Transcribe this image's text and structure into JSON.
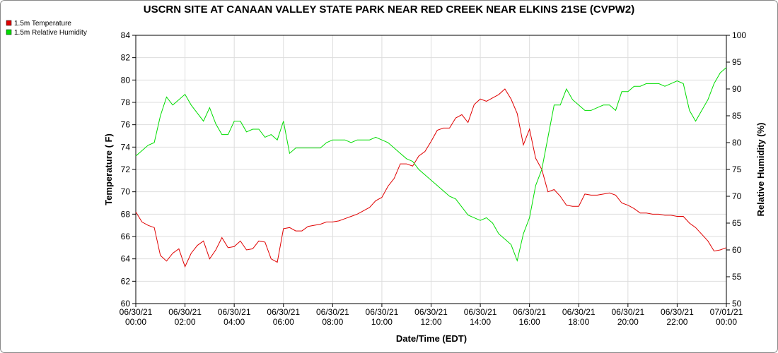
{
  "chart_data": {
    "type": "line",
    "title": "USCRN SITE AT CANAAN VALLEY STATE PARK NEAR RED CREEK NEAR ELKINS 21SE (CVPW2)",
    "x_label": "Date/Time (EDT)",
    "y_label": "Temperature ( F)",
    "y2_label": "Relative Humidity (%)",
    "x": [
      "06/30/21 00:00",
      "06/30/21 00:15",
      "06/30/21 00:30",
      "06/30/21 00:45",
      "06/30/21 01:00",
      "06/30/21 01:15",
      "06/30/21 01:30",
      "06/30/21 01:45",
      "06/30/21 02:00",
      "06/30/21 02:15",
      "06/30/21 02:30",
      "06/30/21 02:45",
      "06/30/21 03:00",
      "06/30/21 03:15",
      "06/30/21 03:30",
      "06/30/21 03:45",
      "06/30/21 04:00",
      "06/30/21 04:15",
      "06/30/21 04:30",
      "06/30/21 04:45",
      "06/30/21 05:00",
      "06/30/21 05:15",
      "06/30/21 05:30",
      "06/30/21 05:45",
      "06/30/21 06:00",
      "06/30/21 06:15",
      "06/30/21 06:30",
      "06/30/21 06:45",
      "06/30/21 07:00",
      "06/30/21 07:15",
      "06/30/21 07:30",
      "06/30/21 07:45",
      "06/30/21 08:00",
      "06/30/21 08:15",
      "06/30/21 08:30",
      "06/30/21 08:45",
      "06/30/21 09:00",
      "06/30/21 09:15",
      "06/30/21 09:30",
      "06/30/21 09:45",
      "06/30/21 10:00",
      "06/30/21 10:15",
      "06/30/21 10:30",
      "06/30/21 10:45",
      "06/30/21 11:00",
      "06/30/21 11:15",
      "06/30/21 11:30",
      "06/30/21 11:45",
      "06/30/21 12:00",
      "06/30/21 12:15",
      "06/30/21 12:30",
      "06/30/21 12:45",
      "06/30/21 13:00",
      "06/30/21 13:15",
      "06/30/21 13:30",
      "06/30/21 13:45",
      "06/30/21 14:00",
      "06/30/21 14:15",
      "06/30/21 14:30",
      "06/30/21 14:45",
      "06/30/21 15:00",
      "06/30/21 15:15",
      "06/30/21 15:30",
      "06/30/21 15:45",
      "06/30/21 16:00",
      "06/30/21 16:15",
      "06/30/21 16:30",
      "06/30/21 16:45",
      "06/30/21 17:00",
      "06/30/21 17:15",
      "06/30/21 17:30",
      "06/30/21 17:45",
      "06/30/21 18:00",
      "06/30/21 18:15",
      "06/30/21 18:30",
      "06/30/21 18:45",
      "06/30/21 19:00",
      "06/30/21 19:15",
      "06/30/21 19:30",
      "06/30/21 19:45",
      "06/30/21 20:00",
      "06/30/21 20:15",
      "06/30/21 20:30",
      "06/30/21 20:45",
      "06/30/21 21:00",
      "06/30/21 21:15",
      "06/30/21 21:30",
      "06/30/21 21:45",
      "06/30/21 22:00",
      "06/30/21 22:15",
      "06/30/21 22:30",
      "06/30/21 22:45",
      "06/30/21 23:00",
      "06/30/21 23:15",
      "06/30/21 23:30",
      "06/30/21 23:45",
      "07/01/21 00:00"
    ],
    "series": [
      {
        "name": "1.5m Temperature",
        "color": "#e00000",
        "values": [
          68.2,
          67.3,
          67.0,
          66.8,
          64.3,
          63.8,
          64.5,
          64.9,
          63.3,
          64.5,
          65.2,
          65.6,
          64.0,
          64.8,
          65.9,
          65.0,
          65.1,
          65.6,
          64.8,
          64.9,
          65.6,
          65.5,
          64.0,
          63.7,
          66.7,
          66.8,
          66.5,
          66.5,
          66.9,
          67.0,
          67.1,
          67.3,
          67.3,
          67.4,
          67.6,
          67.8,
          68.0,
          68.3,
          68.6,
          69.2,
          69.5,
          70.5,
          71.2,
          72.5,
          72.5,
          72.3,
          73.2,
          73.6,
          74.5,
          75.5,
          75.7,
          75.7,
          76.6,
          76.9,
          76.2,
          77.8,
          78.3,
          78.1,
          78.4,
          78.7,
          79.2,
          78.3,
          77.0,
          74.2,
          75.6,
          73.0,
          72.0,
          70.0,
          70.2,
          69.6,
          68.8,
          68.7,
          68.7,
          69.8,
          69.7,
          69.7,
          69.8,
          69.9,
          69.7,
          69.0,
          68.8,
          68.5,
          68.1,
          68.1,
          68.0,
          68.0,
          67.9,
          67.9,
          67.8,
          67.8,
          67.2,
          66.8,
          66.2,
          65.6,
          64.7,
          64.8,
          65.0
        ]
      },
      {
        "name": "1.5m Relative Humidity",
        "color": "#00dd00",
        "axis": "y2",
        "values": [
          77.5,
          78.5,
          79.5,
          80,
          85,
          88.5,
          87,
          88,
          89,
          87,
          85.5,
          84,
          86.5,
          83.5,
          81.5,
          81.5,
          84,
          84,
          82,
          82.5,
          82.5,
          81,
          81.5,
          80.5,
          84,
          78,
          79,
          79,
          79,
          79,
          79,
          80,
          80.5,
          80.5,
          80.5,
          80,
          80.5,
          80.5,
          80.5,
          81,
          80.5,
          80,
          79,
          78,
          77,
          76.5,
          75,
          74,
          73,
          72,
          71,
          70,
          69.5,
          68,
          66.5,
          66,
          65.5,
          66,
          65,
          63,
          62,
          61,
          58,
          63,
          66,
          72,
          75,
          81,
          87,
          87,
          90,
          88,
          87,
          86,
          86,
          86.5,
          87,
          87,
          86,
          89.5,
          89.5,
          90.5,
          90.5,
          91,
          91,
          91,
          90.5,
          91,
          91.5,
          91,
          86,
          84,
          86,
          88,
          91,
          93,
          94
        ]
      }
    ],
    "xlim": [
      "06/30/21 00:00",
      "07/01/21 00:00"
    ],
    "xticks": [
      "06/30/21 00:00",
      "06/30/21 02:00",
      "06/30/21 04:00",
      "06/30/21 06:00",
      "06/30/21 08:00",
      "06/30/21 10:00",
      "06/30/21 12:00",
      "06/30/21 14:00",
      "06/30/21 16:00",
      "06/30/21 18:00",
      "06/30/21 20:00",
      "06/30/21 22:00",
      "07/01/21 00:00"
    ],
    "ylim": [
      60,
      84
    ],
    "yticks": [
      60,
      62,
      64,
      66,
      68,
      70,
      72,
      74,
      76,
      78,
      80,
      82,
      84
    ],
    "y2lim": [
      50,
      100
    ],
    "y2ticks": [
      50,
      55,
      60,
      65,
      70,
      75,
      80,
      85,
      90,
      95,
      100
    ],
    "grid": true
  }
}
